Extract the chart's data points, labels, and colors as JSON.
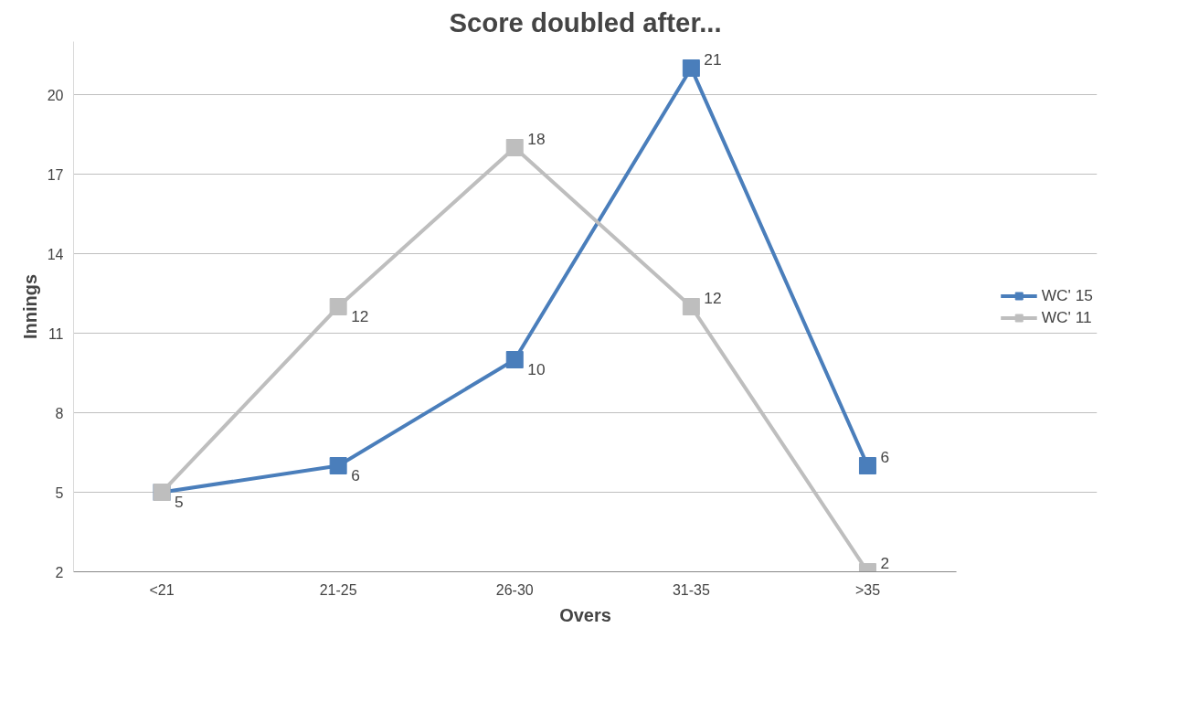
{
  "chart_data": {
    "type": "line",
    "title": "Score doubled after...",
    "xlabel": "Overs",
    "ylabel": "Innings",
    "categories": [
      "<21",
      "21-25",
      "26-30",
      "31-35",
      ">35"
    ],
    "series": [
      {
        "name": "WC' 15",
        "color": "#4a7ebb",
        "values": [
          5,
          6,
          10,
          21,
          6
        ],
        "value_labels": [
          "5",
          "6",
          "10",
          "21",
          "6"
        ]
      },
      {
        "name": "WC' 11",
        "color": "#bebebe",
        "values": [
          5,
          12,
          18,
          12,
          2
        ],
        "value_labels": [
          null,
          "12",
          "18",
          "12",
          "2"
        ]
      }
    ],
    "ylim": [
      2,
      22
    ],
    "yticks": [
      2,
      5,
      8,
      11,
      14,
      17,
      20
    ],
    "grid": "y",
    "legend": "right",
    "marker": "square",
    "line_style": "solid"
  }
}
